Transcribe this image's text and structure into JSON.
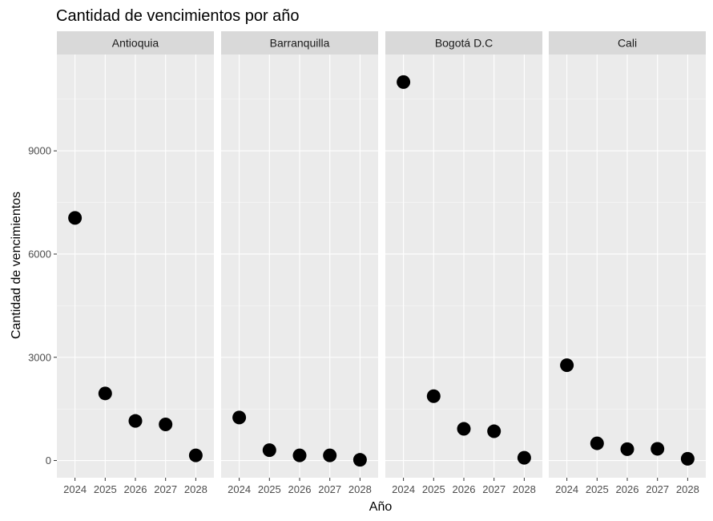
{
  "chart_data": {
    "type": "scatter",
    "title": "Cantidad de vencimientos por año",
    "xlabel": "Año",
    "ylabel": "Cantidad de vencimientos",
    "categories": [
      "2024",
      "2025",
      "2026",
      "2027",
      "2028"
    ],
    "y_ticks": [
      0,
      3000,
      6000,
      9000
    ],
    "y_tick_labels": [
      "0",
      "3000",
      "6000",
      "9000"
    ],
    "ylim": [
      -500,
      11800
    ],
    "grid": true,
    "facets": [
      {
        "name": "Antioquia",
        "values": [
          7050,
          1950,
          1150,
          1050,
          150
        ]
      },
      {
        "name": "Barranquilla",
        "values": [
          1250,
          300,
          150,
          150,
          20
        ]
      },
      {
        "name": "Bogotá D.C",
        "values": [
          11000,
          1870,
          920,
          850,
          80
        ]
      },
      {
        "name": "Cali",
        "values": [
          2770,
          500,
          330,
          340,
          50
        ]
      }
    ],
    "colors": {
      "panel_bg": "#ebebeb",
      "strip_bg": "#d9d9d9",
      "grid_major": "#ffffff",
      "point": "#000000"
    }
  }
}
